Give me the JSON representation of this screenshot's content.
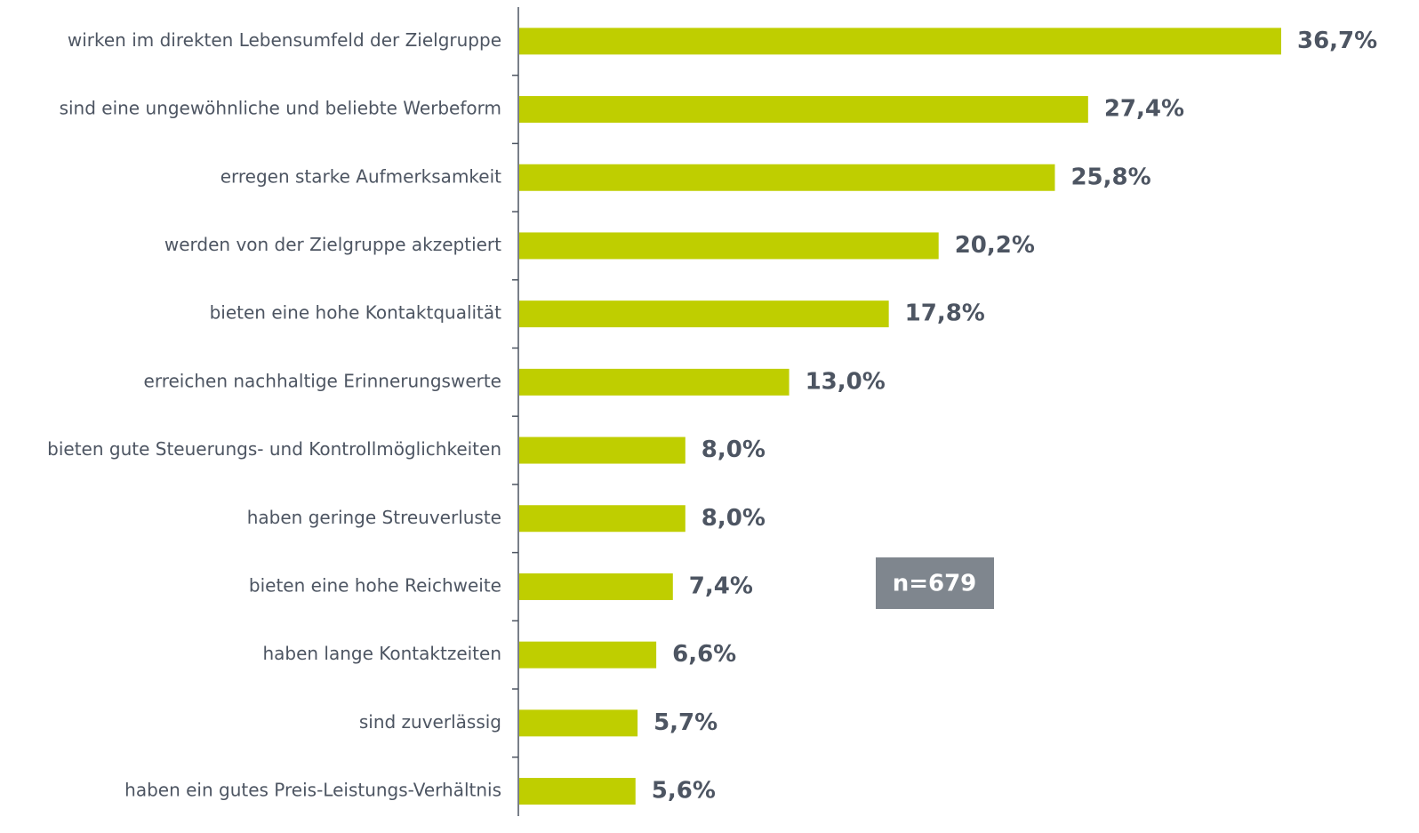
{
  "chart_data": {
    "type": "barh",
    "categories": [
      "wirken im direkten Lebensumfeld der Zielgruppe",
      "sind eine ungewöhnliche und beliebte Werbeform",
      "erregen starke Aufmerksamkeit",
      "werden von der Zielgruppe akzeptiert",
      "bieten eine hohe Kontaktqualität",
      "erreichen nachhaltige Erinnerungswerte",
      "bieten gute Steuerungs- und Kontrollmöglichkeiten",
      "haben geringe Streuverluste",
      "bieten eine hohe Reichweite",
      "haben lange Kontaktzeiten",
      "sind zuverlässig",
      "haben ein gutes Preis-Leistungs-Verhältnis"
    ],
    "values": [
      36.7,
      27.4,
      25.8,
      20.2,
      17.8,
      13.0,
      8.0,
      8.0,
      7.4,
      6.6,
      5.7,
      5.6
    ],
    "value_labels": [
      "36,7%",
      "27,4%",
      "25,8%",
      "20,2%",
      "17,8%",
      "13,0%",
      "8,0%",
      "8,0%",
      "7,4%",
      "6,6%",
      "5,7%",
      "5,6%"
    ],
    "color": "#bfce00",
    "annotation": "n=679"
  }
}
